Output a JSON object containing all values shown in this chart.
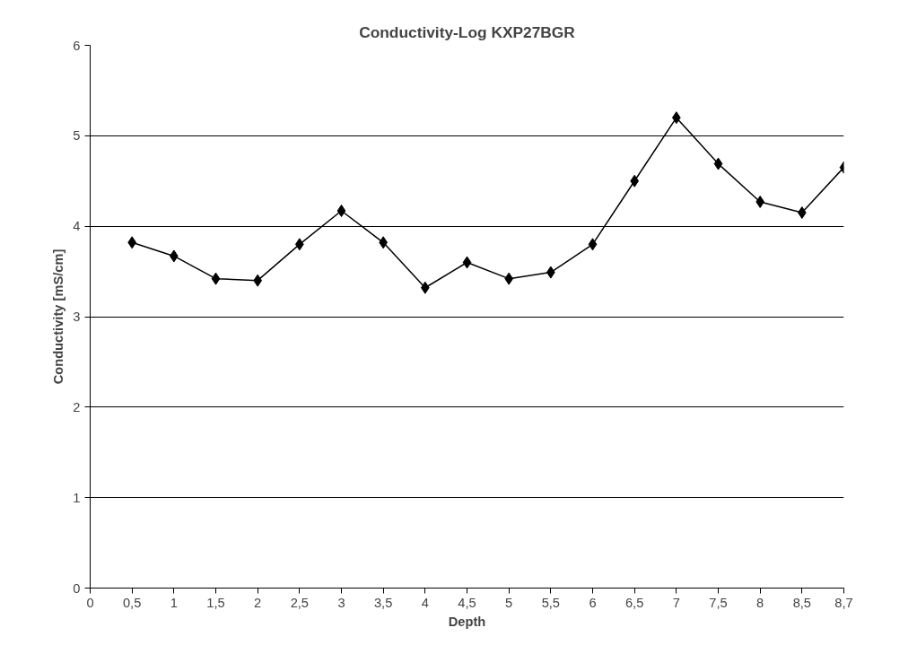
{
  "chart_data": {
    "type": "line",
    "title": "Conductivity-Log KXP27BGR",
    "xlabel": "Depth",
    "ylabel": "Conductivity [mS/cm]",
    "categories": [
      "0",
      "0,5",
      "1",
      "1,5",
      "2",
      "2,5",
      "3",
      "3,5",
      "4",
      "4,5",
      "5",
      "5,5",
      "6",
      "6,5",
      "7",
      "7,5",
      "8",
      "8,5",
      "8,7"
    ],
    "series": [
      {
        "color": "#000000",
        "values": [
          null,
          3.82,
          3.67,
          3.42,
          3.4,
          3.8,
          4.17,
          3.82,
          3.32,
          3.6,
          3.42,
          3.49,
          3.8,
          4.5,
          5.2,
          4.69,
          4.27,
          4.15,
          4.65
        ]
      }
    ],
    "ylim": [
      0,
      6
    ],
    "yticks": [
      0,
      1,
      2,
      3,
      4,
      5,
      6
    ],
    "grid": "y",
    "marker": "diamond",
    "line_style": "solid"
  }
}
